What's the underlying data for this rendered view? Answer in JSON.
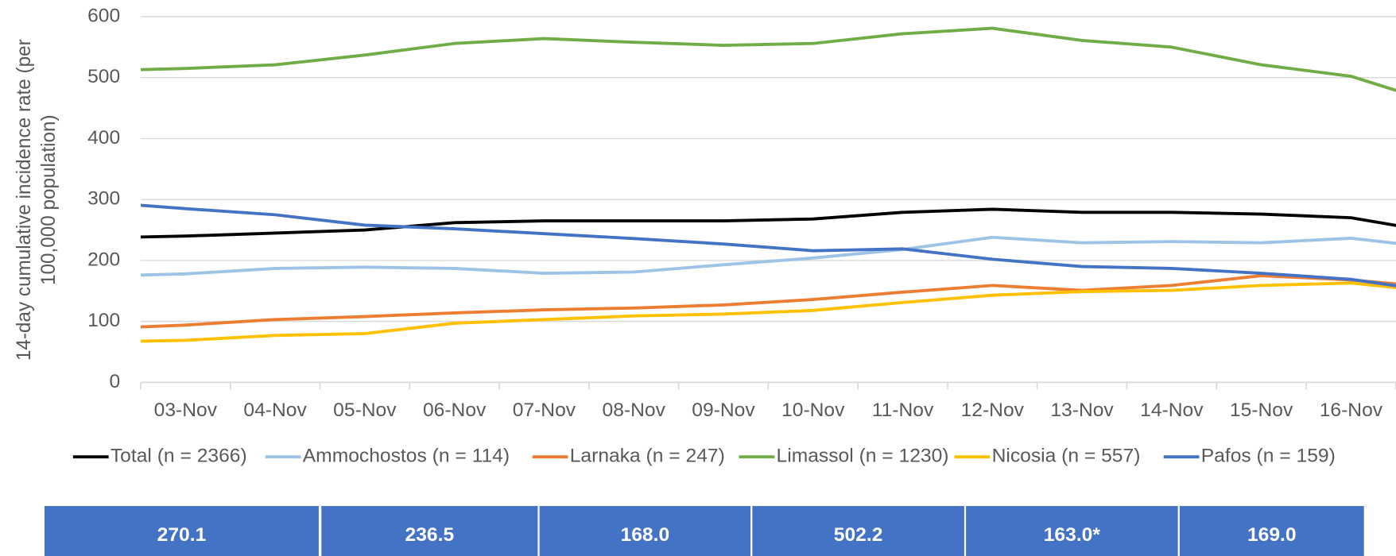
{
  "chart_data": {
    "type": "line",
    "y_label": [
      "14-day cumulative incidence rate (per",
      "100,000 population)"
    ],
    "categories": [
      null,
      "03-Nov",
      "04-Nov",
      "05-Nov",
      "06-Nov",
      "07-Nov",
      "08-Nov",
      "09-Nov",
      "10-Nov",
      "11-Nov",
      "12-Nov",
      "13-Nov",
      "14-Nov",
      "15-Nov",
      "16-Nov",
      null
    ],
    "series": [
      {
        "name": "Total (n = 2366)",
        "color": "#000000",
        "values": [
          237,
          240,
          245,
          250,
          262,
          265,
          265,
          265,
          268,
          279,
          284,
          279,
          279,
          276,
          270.1,
          245
        ]
      },
      {
        "name": "Ammochostos (n = 114)",
        "color": "#9dc3e6",
        "values": [
          174,
          178,
          187,
          189,
          187,
          179,
          181,
          193,
          204,
          218,
          238,
          229,
          231,
          229,
          236.5,
          220
        ]
      },
      {
        "name": "Larnaka (n = 247)",
        "color": "#ed7d31",
        "values": [
          88,
          94,
          103,
          108,
          114,
          119,
          122,
          127,
          136,
          148,
          159,
          151,
          159,
          175,
          168.0,
          155
        ]
      },
      {
        "name": "Limassol (n = 1230)",
        "color": "#70ad47",
        "values": [
          511,
          515,
          521,
          537,
          556,
          564,
          558,
          553,
          556,
          572,
          581,
          561,
          550,
          521,
          502.2,
          456
        ]
      },
      {
        "name": "Nicosia (n = 557)",
        "color": "#ffc000",
        "values": [
          66,
          69,
          77,
          80,
          97,
          103,
          109,
          112,
          118,
          131,
          143,
          149,
          151,
          159,
          163.0,
          148
        ]
      },
      {
        "name": "Pafos (n = 159)",
        "color": "#4472c4",
        "values": [
          296,
          285,
          275,
          258,
          252,
          244,
          236,
          227,
          216,
          219,
          202,
          190,
          187,
          179,
          169.0,
          148
        ]
      }
    ],
    "ylim": [
      0,
      600
    ],
    "yticks": [
      0,
      100,
      200,
      300,
      400,
      500,
      600
    ],
    "grid": true,
    "legend": "bottom"
  },
  "table": [
    "270.1",
    "236.5",
    "168.0",
    "502.2",
    "163.0*",
    "169.0"
  ]
}
